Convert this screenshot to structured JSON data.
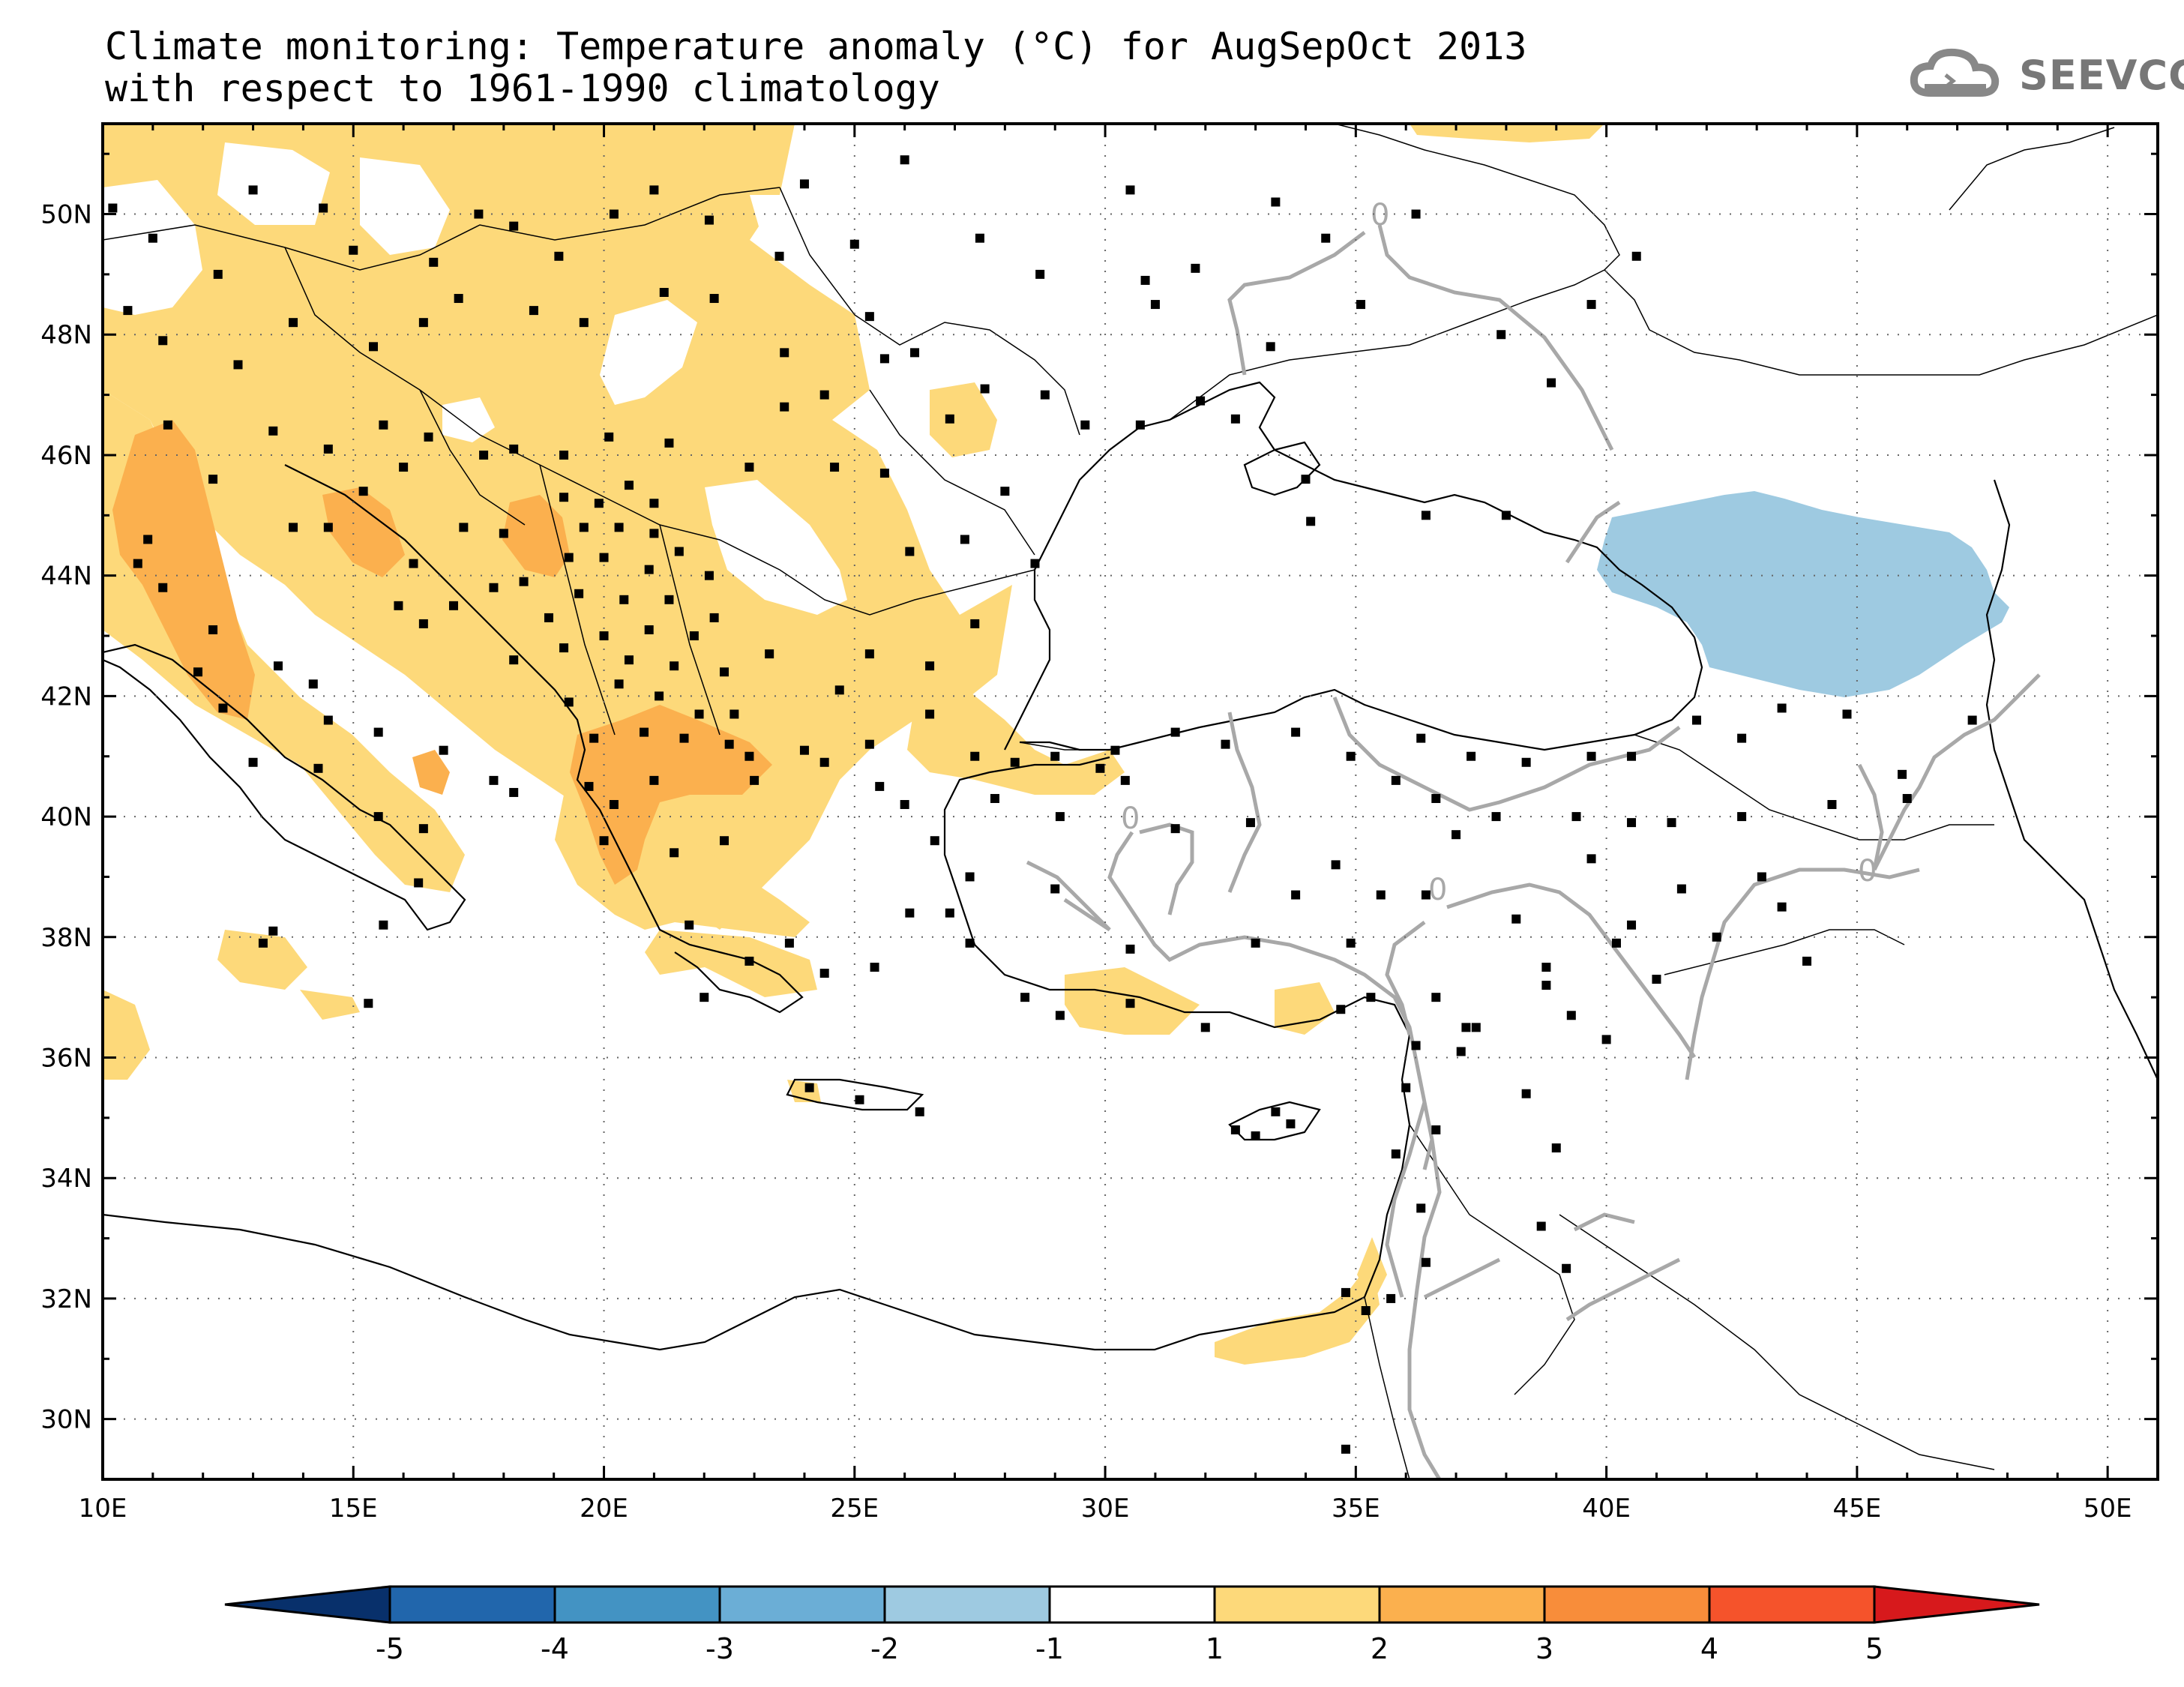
{
  "title": {
    "line1": "Climate monitoring: Temperature anomaly (°C) for AugSepOct 2013",
    "line2": "with respect to 1961-1990 climatology"
  },
  "logo": {
    "icon": "cloud-icon",
    "text": "SEEVCCC"
  },
  "map": {
    "lon_range": [
      10,
      51
    ],
    "lat_range": [
      29,
      51.5
    ],
    "lon_ticks": [
      "10E",
      "15E",
      "20E",
      "25E",
      "30E",
      "35E",
      "40E",
      "45E",
      "50E"
    ],
    "lat_ticks": [
      "30N",
      "32N",
      "34N",
      "36N",
      "38N",
      "40N",
      "42N",
      "44N",
      "46N",
      "48N",
      "50N"
    ],
    "contour_label": "0",
    "colors": {
      "anom_1_2": "#fdd97a",
      "anom_2_3": "#fbb04e",
      "anom_m2_m1": "#9ecae1",
      "contour": "#a8a8a8",
      "station": "#000000"
    }
  },
  "colorbar": {
    "labels": [
      "-5",
      "-4",
      "-3",
      "-2",
      "-1",
      "1",
      "2",
      "3",
      "4",
      "5"
    ],
    "colors": [
      "#08306b",
      "#2166ac",
      "#4393c3",
      "#6baed6",
      "#9ecae1",
      "#ffffff",
      "#fdd97a",
      "#fbb04e",
      "#f88d3a",
      "#f5532b",
      "#d7191c"
    ]
  }
}
